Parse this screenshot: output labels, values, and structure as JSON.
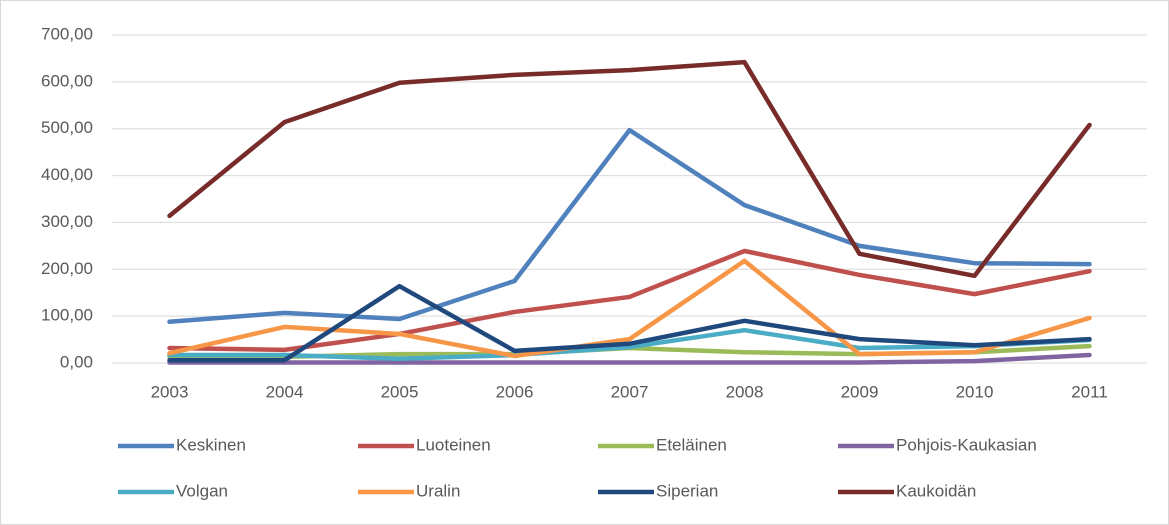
{
  "chart_data": {
    "type": "line",
    "categories": [
      "2003",
      "2004",
      "2005",
      "2006",
      "2007",
      "2008",
      "2009",
      "2010",
      "2011"
    ],
    "ylim": [
      0,
      700
    ],
    "yticks": [
      {
        "value": 0,
        "label": "0,00"
      },
      {
        "value": 100,
        "label": "100,00"
      },
      {
        "value": 200,
        "label": "200,00"
      },
      {
        "value": 300,
        "label": "300,00"
      },
      {
        "value": 400,
        "label": "400,00"
      },
      {
        "value": 500,
        "label": "500,00"
      },
      {
        "value": 600,
        "label": "600,00"
      },
      {
        "value": 700,
        "label": "700,00"
      }
    ],
    "grid": true,
    "legend": "bottom",
    "series": [
      {
        "name": "Keskinen",
        "color": "#4f81bd",
        "values": [
          88,
          107,
          94,
          175,
          497,
          337,
          250,
          213,
          211
        ]
      },
      {
        "name": "Luoteinen",
        "color": "#c0504d",
        "values": [
          32,
          28,
          62,
          109,
          141,
          239,
          188,
          147,
          196
        ]
      },
      {
        "name": "Eteläinen",
        "color": "#9bbb59",
        "values": [
          13,
          13,
          19,
          19,
          32,
          23,
          19,
          23,
          36
        ]
      },
      {
        "name": "Pohjois-Kaukasian",
        "color": "#8064a2",
        "values": [
          1,
          1,
          1,
          1,
          1,
          1,
          1,
          4,
          17
        ]
      },
      {
        "name": "Volgan",
        "color": "#4bacc6",
        "values": [
          17,
          17,
          9,
          17,
          34,
          70,
          32,
          36,
          49
        ]
      },
      {
        "name": "Uralin",
        "color": "#f79646",
        "values": [
          21,
          77,
          62,
          15,
          51,
          218,
          19,
          23,
          96
        ]
      },
      {
        "name": "Siperian",
        "color": "#1f497d",
        "values": [
          6,
          6,
          164,
          26,
          41,
          90,
          51,
          38,
          51
        ]
      },
      {
        "name": "Kaukoidän",
        "color": "#772c2a",
        "values": [
          314,
          514,
          598,
          615,
          625,
          642,
          233,
          186,
          508
        ]
      }
    ]
  }
}
